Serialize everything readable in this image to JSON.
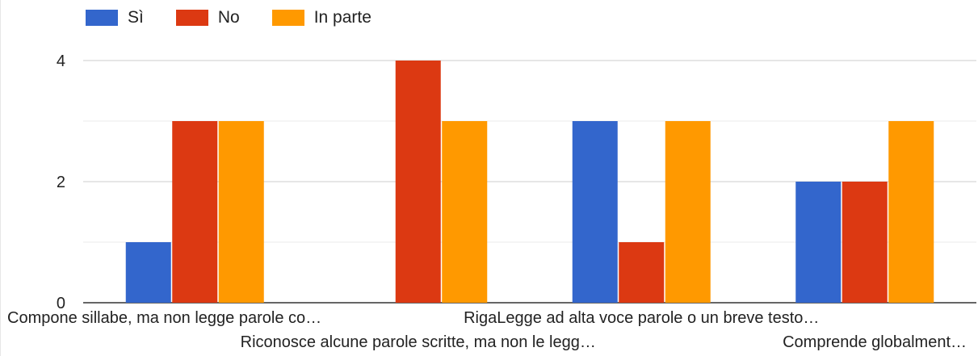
{
  "chart_data": {
    "type": "bar",
    "title": "",
    "xlabel": "",
    "ylabel": "",
    "ylim": [
      0,
      4.8
    ],
    "yticks": [
      0,
      2,
      4
    ],
    "grid": true,
    "legend_position": "top-left",
    "categories": [
      "Compone sillabe, ma non legge parole co…",
      "Riconosce alcune parole scritte, ma non le legg…",
      "RigaLegge ad alta voce parole o un breve testo…",
      "Comprende globalment…"
    ],
    "series": [
      {
        "name": "Sì",
        "color": "#3366cc",
        "values": [
          1,
          0,
          3,
          2
        ]
      },
      {
        "name": "No",
        "color": "#dc3912",
        "values": [
          3,
          4,
          1,
          2
        ]
      },
      {
        "name": "In parte",
        "color": "#ff9900",
        "values": [
          3,
          3,
          3,
          3
        ]
      }
    ]
  }
}
